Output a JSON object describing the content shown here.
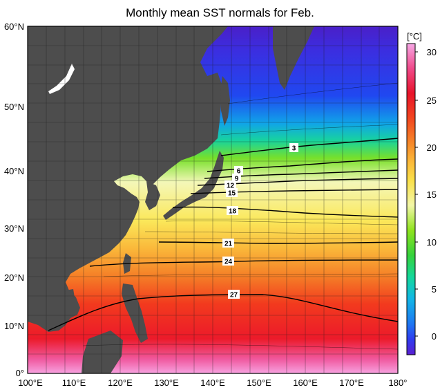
{
  "title": "Monthly mean SST normals for Feb.",
  "colorbar": {
    "unit": "[°C]",
    "ticks": [
      "30",
      "25",
      "20",
      "15",
      "10",
      "5",
      "0"
    ]
  },
  "axes": {
    "lat_ticks": [
      "60°N",
      "50°N",
      "40°N",
      "30°N",
      "20°N",
      "10°N",
      "0°"
    ],
    "lon_ticks": [
      "100°E",
      "110°E",
      "120°E",
      "130°E",
      "140°E",
      "150°E",
      "160°E",
      "170°E",
      "180°"
    ]
  },
  "isotherm_labels": [
    "3",
    "6",
    "9",
    "12",
    "15",
    "18",
    "21",
    "24",
    "27"
  ],
  "colors": {
    "land": "#4d4d4d",
    "grid": "#1a1a1a",
    "scale": [
      "#5a1fd1",
      "#2f3df0",
      "#1e78f2",
      "#12b7e6",
      "#14d79a",
      "#36d23c",
      "#8fe31e",
      "#f3f7a8",
      "#fae04a",
      "#fbb93a",
      "#f6882a",
      "#f2461f",
      "#e8132a",
      "#f04a8a",
      "#f7a8e6"
    ]
  }
}
